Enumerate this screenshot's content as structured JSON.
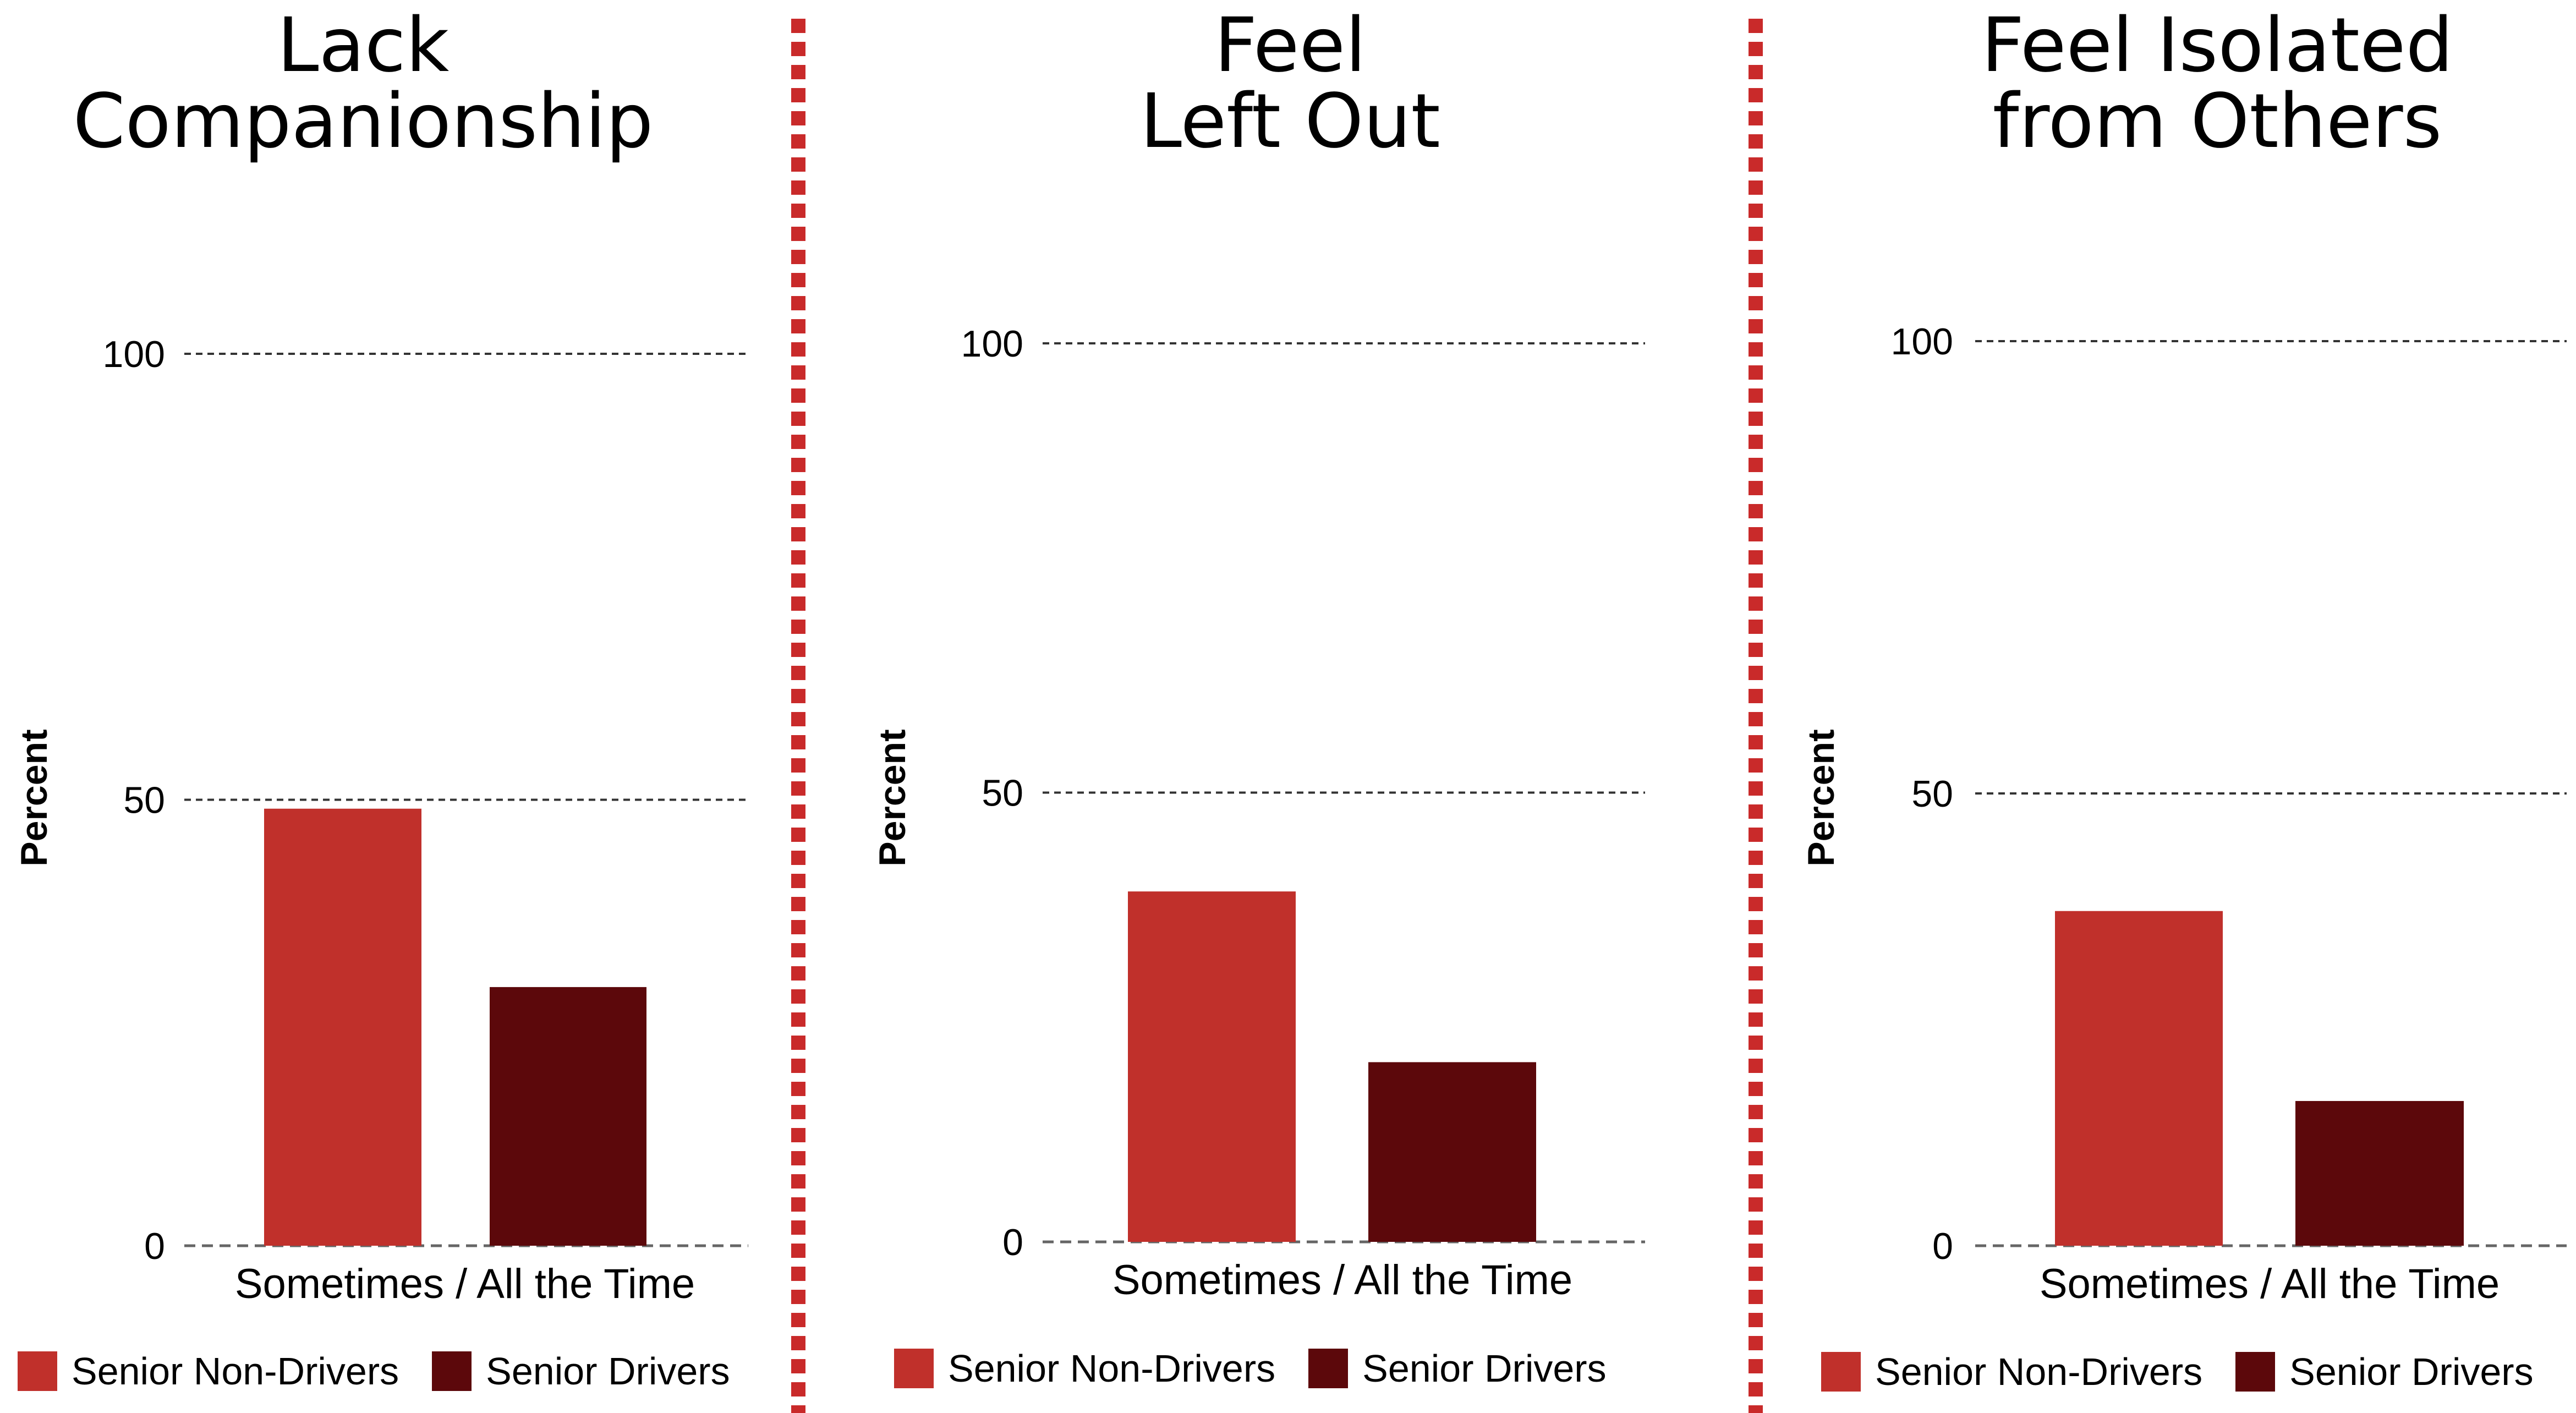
{
  "colors": {
    "non_drivers": "#c0302b",
    "drivers": "#5c080b",
    "divider": "#c92a2a",
    "gridline": "#333333",
    "baseline": "#666666"
  },
  "chart_data": [
    {
      "type": "bar",
      "title": [
        "Lack",
        "Companionship"
      ],
      "ylabel": "Percent",
      "xlabel": "",
      "categories": [
        "Sometimes / All the Time"
      ],
      "yticks": [
        0,
        50,
        100
      ],
      "ylim": [
        0,
        100
      ],
      "grid": true,
      "legend_position": "bottom",
      "series": [
        {
          "name": "Senior Non-Drivers",
          "values": [
            49
          ]
        },
        {
          "name": "Senior Drivers",
          "values": [
            29
          ]
        }
      ]
    },
    {
      "type": "bar",
      "title": [
        "Feel",
        "Left Out"
      ],
      "ylabel": "Percent",
      "xlabel": "",
      "categories": [
        "Sometimes / All the Time"
      ],
      "yticks": [
        0,
        50,
        100
      ],
      "ylim": [
        0,
        100
      ],
      "grid": true,
      "legend_position": "bottom",
      "series": [
        {
          "name": "Senior Non-Drivers",
          "values": [
            39
          ]
        },
        {
          "name": "Senior Drivers",
          "values": [
            20
          ]
        }
      ]
    },
    {
      "type": "bar",
      "title": [
        "Feel Isolated",
        "from Others"
      ],
      "ylabel": "Percent",
      "xlabel": "",
      "categories": [
        "Sometimes / All the Time"
      ],
      "yticks": [
        0,
        50,
        100
      ],
      "ylim": [
        0,
        100
      ],
      "grid": true,
      "legend_position": "bottom",
      "series": [
        {
          "name": "Senior Non-Drivers",
          "values": [
            37
          ]
        },
        {
          "name": "Senior Drivers",
          "values": [
            16
          ]
        }
      ]
    }
  ]
}
